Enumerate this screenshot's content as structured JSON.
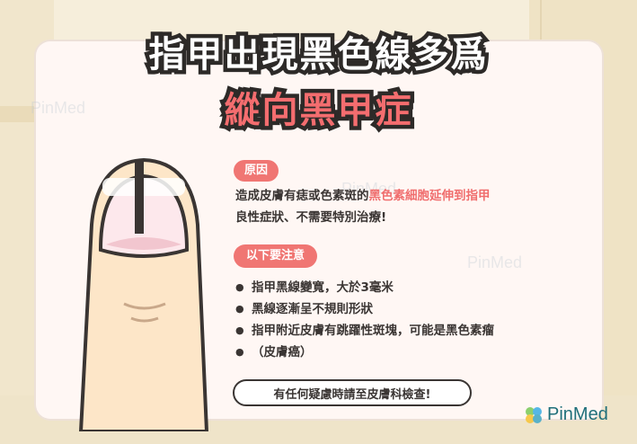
{
  "title_line1": "指甲出現黑色線多爲",
  "title_line2": "縱向黑甲症",
  "cause": {
    "tag": "原因",
    "line1_prefix": "造成皮膚有痣或色素斑的",
    "line1_highlight": "黑色素細胞延伸到指甲",
    "line2": "良性症狀、不需要特別治療!"
  },
  "notice": {
    "tag": "以下要注意",
    "items": [
      "指甲黑線變寬，大於3毫米",
      "黑線逐漸呈不規則形狀",
      "指甲附近皮膚有跳躍性斑塊，可能是黑色素瘤",
      "（皮膚癌）"
    ]
  },
  "cta": "有任何疑慮時請至皮膚科檢查!",
  "brand": "PinMed",
  "colors": {
    "accent": "#f07673",
    "ink": "#3a3533",
    "logo": "#1f6f7a"
  }
}
